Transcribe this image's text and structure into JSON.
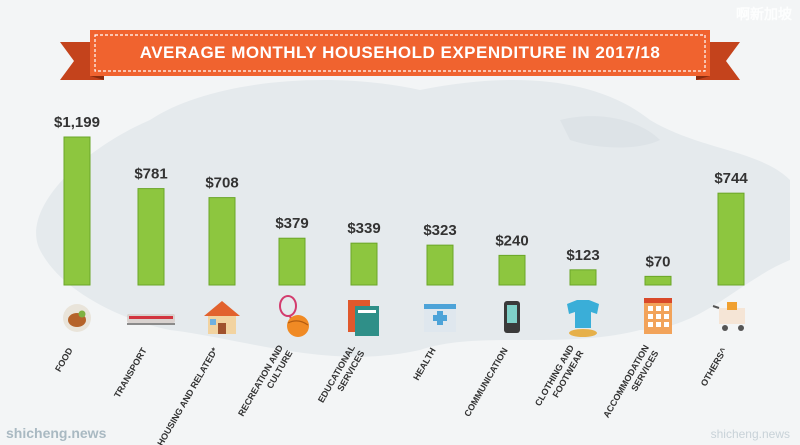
{
  "banner": {
    "title": "AVERAGE MONTHLY HOUSEHOLD EXPENDITURE  IN 2017/18"
  },
  "watermarks": {
    "top_right": "啊新加坡",
    "bottom_left": "shicheng.news",
    "bottom_right": "shicheng.news"
  },
  "colors": {
    "bar": "#8dc63f",
    "bar_edge": "#6aa628",
    "label": "#333333",
    "banner": "#f0632f",
    "banner_dark": "#c4431c"
  },
  "chart_data": {
    "type": "bar",
    "title": "AVERAGE MONTHLY HOUSEHOLD EXPENDITURE  IN 2017/18",
    "xlabel": "",
    "ylabel": "",
    "ylim": [
      0,
      1199
    ],
    "grid": false,
    "categories": [
      "FOOD",
      "TRANSPORT",
      "HOUSING AND RELATED*",
      "RECREATION AND CULTURE",
      "EDUCATIONAL SERVICES",
      "HEALTH",
      "COMMUNICATION",
      "CLOTHING AND FOOTWEAR",
      "ACCOMMODATION SERVICES",
      "OTHERS^"
    ],
    "category_lines": [
      [
        "FOOD"
      ],
      [
        "TRANSPORT"
      ],
      [
        "HOUSING AND RELATED*"
      ],
      [
        "RECREATION AND",
        "CULTURE"
      ],
      [
        "EDUCATIONAL",
        "SERVICES"
      ],
      [
        "HEALTH"
      ],
      [
        "COMMUNICATION"
      ],
      [
        "CLOTHING AND",
        "FOOTWEAR"
      ],
      [
        "ACCOMMODATION",
        "SERVICES"
      ],
      [
        "OTHERS^"
      ]
    ],
    "values": [
      1199,
      781,
      708,
      379,
      339,
      323,
      240,
      123,
      70,
      744
    ],
    "value_labels": [
      "$1,199",
      "$781",
      "$708",
      "$379",
      "$339",
      "$323",
      "$240",
      "$123",
      "$70",
      "$744"
    ],
    "icons": [
      "food-icon",
      "train-icon",
      "house-icon",
      "racket-ball-icon",
      "books-icon",
      "hospital-icon",
      "phone-icon",
      "shirt-shoes-icon",
      "hotel-icon",
      "shopping-cart-icon"
    ]
  }
}
